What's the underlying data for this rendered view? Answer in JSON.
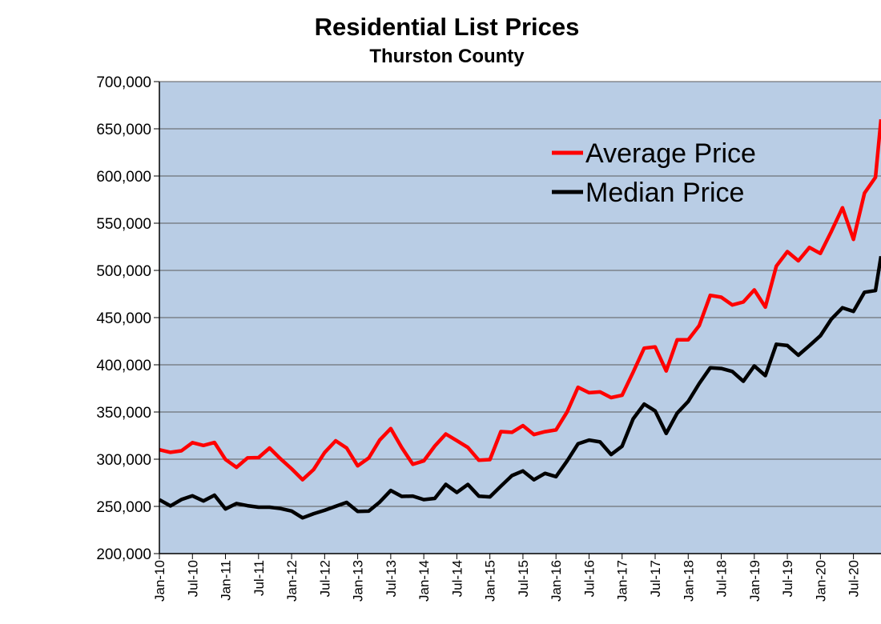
{
  "chart_data": {
    "type": "line",
    "title": "Residential List Prices",
    "subtitle": "Thurston County",
    "xlabel": "",
    "ylabel": "",
    "ylim": [
      200000,
      700000
    ],
    "yticks": [
      "200,000",
      "250,000",
      "300,000",
      "350,000",
      "400,000",
      "450,000",
      "500,000",
      "550,000",
      "600,000",
      "650,000",
      "700,000"
    ],
    "xticks": [
      "Jan-10",
      "Jul-10",
      "Jan-11",
      "Jul-11",
      "Jan-12",
      "Jul-12",
      "Jan-13",
      "Jul-13",
      "Jan-14",
      "Jul-14",
      "Jan-15",
      "Jul-15",
      "Jan-16",
      "Jul-16",
      "Jan-17",
      "Jul-17",
      "Jan-18",
      "Jul-18",
      "Jan-19",
      "Jul-19",
      "Jan-20",
      "Jul-20"
    ],
    "xrange": [
      "2010-01",
      "2020-12"
    ],
    "grid": "horizontal",
    "legend_position": "upper-right-inside",
    "plot_background": "#b9cde5",
    "series": [
      {
        "name": "Average Price",
        "color": "#ff0000",
        "x": [
          "2010-01",
          "2010-03",
          "2010-05",
          "2010-07",
          "2010-09",
          "2010-11",
          "2011-01",
          "2011-03",
          "2011-05",
          "2011-07",
          "2011-09",
          "2011-11",
          "2012-01",
          "2012-03",
          "2012-05",
          "2012-07",
          "2012-09",
          "2012-11",
          "2013-01",
          "2013-03",
          "2013-05",
          "2013-07",
          "2013-09",
          "2013-11",
          "2014-01",
          "2014-03",
          "2014-05",
          "2014-07",
          "2014-09",
          "2014-11",
          "2015-01",
          "2015-03",
          "2015-05",
          "2015-07",
          "2015-09",
          "2015-11",
          "2016-01",
          "2016-03",
          "2016-05",
          "2016-07",
          "2016-09",
          "2016-11",
          "2017-01",
          "2017-03",
          "2017-05",
          "2017-07",
          "2017-09",
          "2017-11",
          "2018-01",
          "2018-03",
          "2018-05",
          "2018-07",
          "2018-09",
          "2018-11",
          "2019-01",
          "2019-03",
          "2019-05",
          "2019-07",
          "2019-09",
          "2019-11",
          "2020-01",
          "2020-03",
          "2020-05",
          "2020-07",
          "2020-09",
          "2020-11",
          "2020-12"
        ],
        "values": [
          310000,
          305000,
          313000,
          316000,
          318000,
          313000,
          300000,
          292000,
          302000,
          305000,
          307000,
          302000,
          287000,
          282000,
          290000,
          305000,
          320000,
          308000,
          298000,
          300000,
          322000,
          330000,
          310000,
          298000,
          297000,
          318000,
          322000,
          320000,
          312000,
          300000,
          303000,
          325000,
          330000,
          332000,
          330000,
          330000,
          330000,
          350000,
          372000,
          375000,
          370000,
          368000,
          365000,
          390000,
          420000,
          418000,
          398000,
          422000,
          427000,
          440000,
          475000,
          475000,
          460000,
          468000,
          475000,
          465000,
          505000,
          520000,
          510000,
          520000,
          522000,
          540000,
          570000,
          530000,
          580000,
          600000,
          660000
        ]
      },
      {
        "name": "Median Price",
        "color": "#000000",
        "x": [
          "2010-01",
          "2010-03",
          "2010-05",
          "2010-07",
          "2010-09",
          "2010-11",
          "2011-01",
          "2011-03",
          "2011-05",
          "2011-07",
          "2011-09",
          "2011-11",
          "2012-01",
          "2012-03",
          "2012-05",
          "2012-07",
          "2012-09",
          "2012-11",
          "2013-01",
          "2013-03",
          "2013-05",
          "2013-07",
          "2013-09",
          "2013-11",
          "2014-01",
          "2014-03",
          "2014-05",
          "2014-07",
          "2014-09",
          "2014-11",
          "2015-01",
          "2015-03",
          "2015-05",
          "2015-07",
          "2015-09",
          "2015-11",
          "2016-01",
          "2016-03",
          "2016-05",
          "2016-07",
          "2016-09",
          "2016-11",
          "2017-01",
          "2017-03",
          "2017-05",
          "2017-07",
          "2017-09",
          "2017-11",
          "2018-01",
          "2018-03",
          "2018-05",
          "2018-07",
          "2018-09",
          "2018-11",
          "2019-01",
          "2019-03",
          "2019-05",
          "2019-07",
          "2019-09",
          "2019-11",
          "2020-01",
          "2020-03",
          "2020-05",
          "2020-07",
          "2020-09",
          "2020-11",
          "2020-12"
        ],
        "values": [
          257000,
          251000,
          255000,
          260000,
          260000,
          260000,
          250000,
          248000,
          252000,
          250000,
          250000,
          250000,
          240000,
          240000,
          240000,
          250000,
          250000,
          252000,
          245000,
          242000,
          260000,
          265000,
          262000,
          258000,
          256000,
          262000,
          272000,
          268000,
          268000,
          262000,
          260000,
          273000,
          285000,
          283000,
          280000,
          282000,
          286000,
          298000,
          315000,
          320000,
          315000,
          310000,
          312000,
          345000,
          355000,
          350000,
          330000,
          348000,
          365000,
          375000,
          398000,
          395000,
          395000,
          385000,
          395000,
          390000,
          418000,
          425000,
          410000,
          420000,
          430000,
          445000,
          465000,
          455000,
          480000,
          475000,
          515000
        ]
      }
    ]
  }
}
